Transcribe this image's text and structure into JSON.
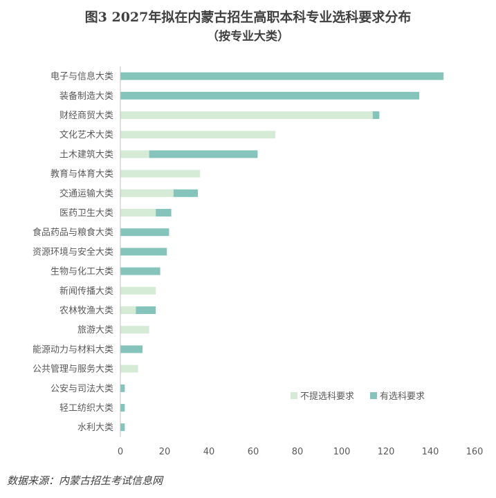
{
  "title": "图3  2027年拟在内蒙古招生高职本科专业选科要求分布",
  "subtitle": "（按专业大类）",
  "source": "数据来源：内蒙古招生考试信息网",
  "colors": {
    "no_req": "#d5ebd5",
    "has_req": "#85c4bb",
    "axis": "#bfbfbf"
  },
  "chart_data": {
    "type": "bar",
    "orientation": "horizontal",
    "stacked": true,
    "categories": [
      "电子与信息大类",
      "装备制造大类",
      "财经商贸大类",
      "文化艺术大类",
      "土木建筑大类",
      "教育与体育大类",
      "交通运输大类",
      "医药卫生大类",
      "食品药品与粮食大类",
      "资源环境与安全大类",
      "生物与化工大类",
      "新闻传播大类",
      "农林牧渔大类",
      "旅游大类",
      "能源动力与材料大类",
      "公共管理与服务大类",
      "公安与司法大类",
      "轻工纺织大类",
      "水利大类"
    ],
    "series": [
      {
        "name": "不提选科要求",
        "values": [
          0,
          0,
          114,
          70,
          13,
          36,
          24,
          16,
          0,
          0,
          0,
          16,
          7,
          13,
          0,
          8,
          0,
          0,
          0
        ]
      },
      {
        "name": "有选科要求",
        "values": [
          146,
          135,
          3,
          0,
          49,
          0,
          11,
          7,
          22,
          21,
          18,
          0,
          9,
          0,
          10,
          0,
          2,
          2,
          2
        ]
      }
    ],
    "xlim": [
      0,
      160
    ],
    "xticks": [
      0,
      20,
      40,
      60,
      80,
      100,
      120,
      140,
      160
    ],
    "legend": "bottom-right"
  }
}
